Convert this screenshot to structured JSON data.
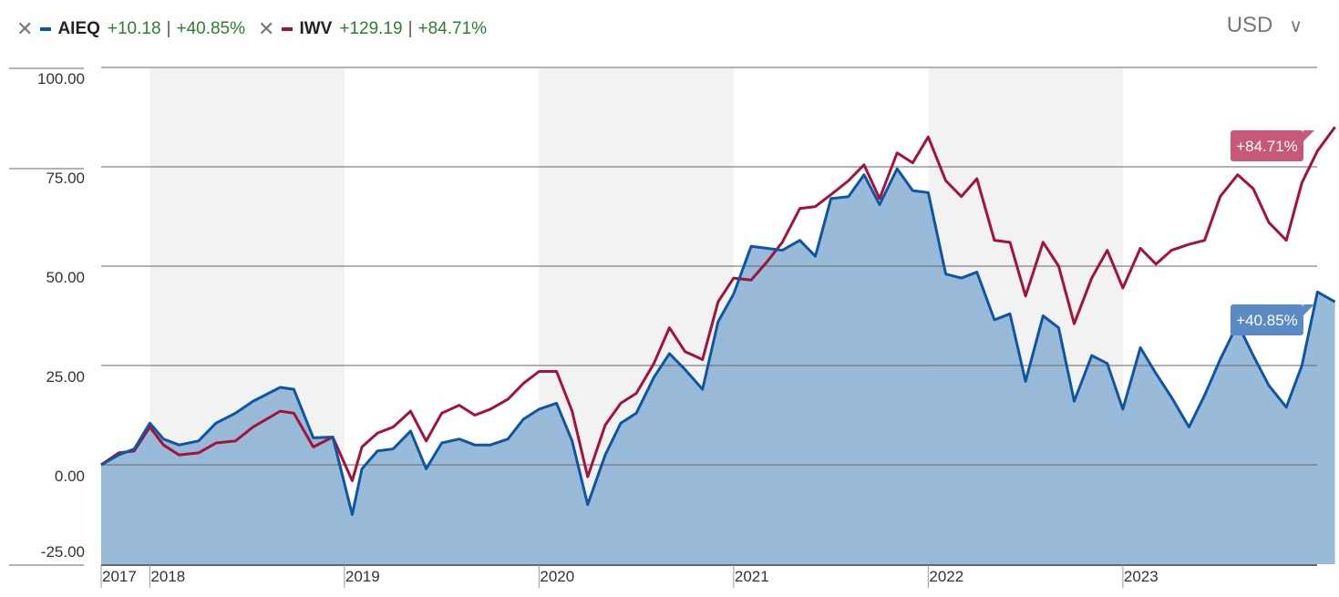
{
  "legend": {
    "series_a": {
      "ticker": "AIEQ",
      "change": "+10.18",
      "pct": "+40.85%",
      "color": "#0e56a1"
    },
    "series_b": {
      "ticker": "IWV",
      "change": "+129.19",
      "pct": "+84.71%",
      "color": "#a3123a"
    },
    "separator": "|",
    "remove_glyph": "✕"
  },
  "currency": {
    "label": "USD",
    "chevron": "∨"
  },
  "chart_data": {
    "type": "area",
    "title": "",
    "xlabel": "",
    "ylabel": "",
    "ylim": [
      -25,
      100
    ],
    "xlim": [
      2017.58,
      2023.83
    ],
    "yticks": [
      {
        "value": 100,
        "label": "100.00"
      },
      {
        "value": 75,
        "label": "75.00"
      },
      {
        "value": 50,
        "label": "50.00"
      },
      {
        "value": 25,
        "label": "25.00"
      },
      {
        "value": 0,
        "label": "0.00"
      },
      {
        "value": -25,
        "label": "-25.00"
      }
    ],
    "xticks": [
      {
        "value": 2017.58,
        "label": "2017"
      },
      {
        "value": 2017.83,
        "label": "2018"
      },
      {
        "value": 2018.83,
        "label": "2019"
      },
      {
        "value": 2019.83,
        "label": "2020"
      },
      {
        "value": 2020.83,
        "label": "2021"
      },
      {
        "value": 2021.83,
        "label": "2022"
      },
      {
        "value": 2022.83,
        "label": "2023"
      }
    ],
    "shaded_years": [
      [
        2017.83,
        2018.83
      ],
      [
        2019.83,
        2020.83
      ],
      [
        2021.83,
        2022.83
      ]
    ],
    "series": [
      {
        "name": "AIEQ",
        "color": "#0e56a1",
        "fill": "#8fb2d6",
        "end_label": "+40.85%",
        "points": [
          [
            2017.58,
            0
          ],
          [
            2017.67,
            2.5
          ],
          [
            2017.75,
            4
          ],
          [
            2017.83,
            10.5
          ],
          [
            2017.9,
            6.5
          ],
          [
            2017.98,
            5
          ],
          [
            2018.08,
            6
          ],
          [
            2018.17,
            10.5
          ],
          [
            2018.27,
            13
          ],
          [
            2018.36,
            16
          ],
          [
            2018.5,
            19.5
          ],
          [
            2018.57,
            19
          ],
          [
            2018.67,
            6.8
          ],
          [
            2018.77,
            7
          ],
          [
            2018.87,
            -12.5
          ],
          [
            2018.92,
            -1
          ],
          [
            2019.0,
            3.5
          ],
          [
            2019.08,
            4
          ],
          [
            2019.17,
            8.5
          ],
          [
            2019.25,
            -1
          ],
          [
            2019.33,
            5.5
          ],
          [
            2019.42,
            6.5
          ],
          [
            2019.5,
            5
          ],
          [
            2019.58,
            5
          ],
          [
            2019.67,
            6.5
          ],
          [
            2019.75,
            11.5
          ],
          [
            2019.83,
            14
          ],
          [
            2019.92,
            15.5
          ],
          [
            2020.0,
            6
          ],
          [
            2020.08,
            -10
          ],
          [
            2020.17,
            2.5
          ],
          [
            2020.25,
            10.5
          ],
          [
            2020.33,
            13
          ],
          [
            2020.42,
            22
          ],
          [
            2020.5,
            28
          ],
          [
            2020.58,
            24
          ],
          [
            2020.67,
            19
          ],
          [
            2020.75,
            36
          ],
          [
            2020.83,
            43
          ],
          [
            2020.92,
            55
          ],
          [
            2021.0,
            54.5
          ],
          [
            2021.08,
            54
          ],
          [
            2021.17,
            56.5
          ],
          [
            2021.25,
            52.5
          ],
          [
            2021.33,
            67
          ],
          [
            2021.42,
            67.5
          ],
          [
            2021.5,
            73
          ],
          [
            2021.58,
            65.5
          ],
          [
            2021.67,
            74.5
          ],
          [
            2021.75,
            69
          ],
          [
            2021.83,
            68.5
          ],
          [
            2021.92,
            48
          ],
          [
            2022.0,
            47
          ],
          [
            2022.08,
            48.5
          ],
          [
            2022.17,
            36.5
          ],
          [
            2022.25,
            38
          ],
          [
            2022.33,
            21
          ],
          [
            2022.42,
            37.5
          ],
          [
            2022.5,
            34.5
          ],
          [
            2022.58,
            16
          ],
          [
            2022.67,
            27.5
          ],
          [
            2022.75,
            25.5
          ],
          [
            2022.83,
            14
          ],
          [
            2022.92,
            29.5
          ],
          [
            2023.0,
            23
          ],
          [
            2023.08,
            17
          ],
          [
            2023.17,
            9.5
          ],
          [
            2023.25,
            17.5
          ],
          [
            2023.33,
            26.5
          ],
          [
            2023.42,
            35.5
          ],
          [
            2023.5,
            27.5
          ],
          [
            2023.58,
            20
          ],
          [
            2023.67,
            14.5
          ],
          [
            2023.75,
            25
          ],
          [
            2023.83,
            43.5
          ],
          [
            2023.92,
            41
          ]
        ]
      },
      {
        "name": "IWV",
        "color": "#a3123a",
        "end_label": "+84.71%",
        "points": [
          [
            2017.58,
            0
          ],
          [
            2017.67,
            3
          ],
          [
            2017.75,
            3.5
          ],
          [
            2017.83,
            9.5
          ],
          [
            2017.9,
            5
          ],
          [
            2017.98,
            2.5
          ],
          [
            2018.08,
            3
          ],
          [
            2018.17,
            5.5
          ],
          [
            2018.27,
            6
          ],
          [
            2018.36,
            9.5
          ],
          [
            2018.5,
            13.5
          ],
          [
            2018.57,
            13
          ],
          [
            2018.67,
            4.5
          ],
          [
            2018.77,
            7
          ],
          [
            2018.87,
            -4
          ],
          [
            2018.92,
            4.5
          ],
          [
            2019.0,
            8
          ],
          [
            2019.08,
            9.5
          ],
          [
            2019.17,
            13.5
          ],
          [
            2019.25,
            6
          ],
          [
            2019.33,
            13
          ],
          [
            2019.42,
            15
          ],
          [
            2019.5,
            12.5
          ],
          [
            2019.58,
            14
          ],
          [
            2019.67,
            16.5
          ],
          [
            2019.75,
            20.5
          ],
          [
            2019.83,
            23.5
          ],
          [
            2019.92,
            23.5
          ],
          [
            2020.0,
            13.5
          ],
          [
            2020.08,
            -3
          ],
          [
            2020.17,
            10
          ],
          [
            2020.25,
            15.5
          ],
          [
            2020.33,
            18
          ],
          [
            2020.42,
            25.5
          ],
          [
            2020.5,
            34.5
          ],
          [
            2020.58,
            28.5
          ],
          [
            2020.67,
            26.5
          ],
          [
            2020.75,
            41
          ],
          [
            2020.83,
            47
          ],
          [
            2020.92,
            46.5
          ],
          [
            2021.0,
            51
          ],
          [
            2021.08,
            56
          ],
          [
            2021.17,
            64.5
          ],
          [
            2021.25,
            65
          ],
          [
            2021.33,
            68
          ],
          [
            2021.42,
            71.5
          ],
          [
            2021.5,
            75.5
          ],
          [
            2021.58,
            67
          ],
          [
            2021.67,
            78.5
          ],
          [
            2021.75,
            76
          ],
          [
            2021.83,
            82.5
          ],
          [
            2021.92,
            71.5
          ],
          [
            2022.0,
            67.5
          ],
          [
            2022.08,
            72
          ],
          [
            2022.17,
            56.5
          ],
          [
            2022.25,
            56
          ],
          [
            2022.33,
            42.5
          ],
          [
            2022.42,
            56
          ],
          [
            2022.5,
            50
          ],
          [
            2022.58,
            35.5
          ],
          [
            2022.67,
            47
          ],
          [
            2022.75,
            54
          ],
          [
            2022.83,
            44.5
          ],
          [
            2022.92,
            54.5
          ],
          [
            2023.0,
            50.5
          ],
          [
            2023.08,
            54
          ],
          [
            2023.17,
            55.5
          ],
          [
            2023.25,
            56.5
          ],
          [
            2023.33,
            67.5
          ],
          [
            2023.42,
            73
          ],
          [
            2023.5,
            69.5
          ],
          [
            2023.58,
            61
          ],
          [
            2023.67,
            56.5
          ],
          [
            2023.75,
            71
          ],
          [
            2023.83,
            79
          ],
          [
            2023.92,
            85
          ]
        ]
      }
    ]
  }
}
